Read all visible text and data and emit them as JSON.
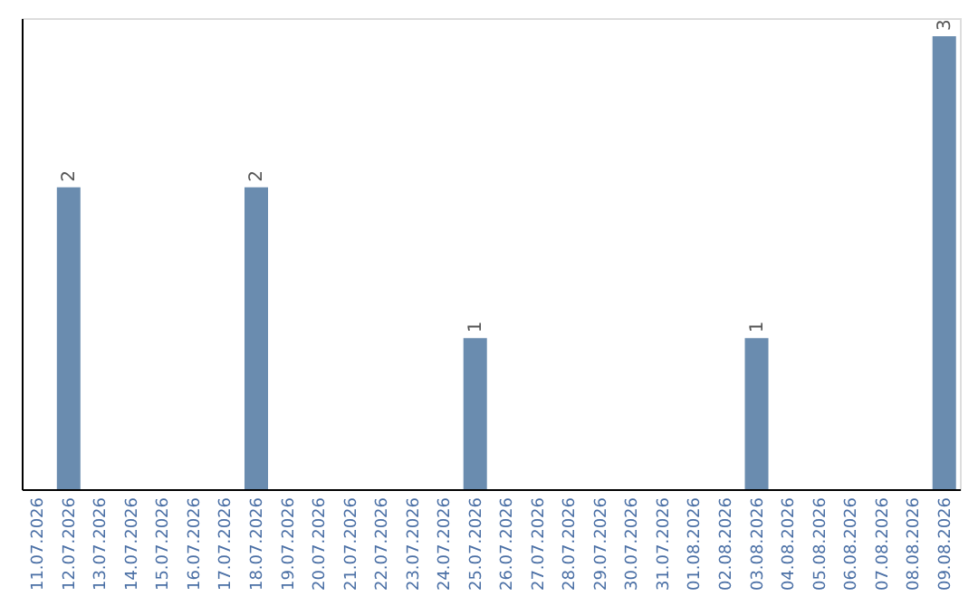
{
  "chart_data": {
    "type": "bar",
    "categories": [
      "11.07.2026",
      "12.07.2026",
      "13.07.2026",
      "14.07.2026",
      "15.07.2026",
      "16.07.2026",
      "17.07.2026",
      "18.07.2026",
      "19.07.2026",
      "20.07.2026",
      "21.07.2026",
      "22.07.2026",
      "23.07.2026",
      "24.07.2026",
      "25.07.2026",
      "26.07.2026",
      "27.07.2026",
      "28.07.2026",
      "29.07.2026",
      "30.07.2026",
      "31.07.2026",
      "01.08.2026",
      "02.08.2026",
      "03.08.2026",
      "04.08.2026",
      "05.08.2026",
      "06.08.2026",
      "07.08.2026",
      "08.08.2026",
      "09.08.2026"
    ],
    "values": [
      0,
      2,
      0,
      0,
      0,
      0,
      0,
      2,
      0,
      0,
      0,
      0,
      0,
      0,
      1,
      0,
      0,
      0,
      0,
      0,
      0,
      0,
      0,
      1,
      0,
      0,
      0,
      0,
      0,
      3
    ],
    "value_labels": [
      null,
      "2",
      null,
      null,
      null,
      null,
      null,
      "2",
      null,
      null,
      null,
      null,
      null,
      null,
      "1",
      null,
      null,
      null,
      null,
      null,
      null,
      null,
      null,
      "1",
      null,
      null,
      null,
      null,
      null,
      "3"
    ],
    "color": "#6a8caf",
    "ylim": [
      0,
      3.12
    ],
    "tick_labels": "x",
    "grid": false
  }
}
